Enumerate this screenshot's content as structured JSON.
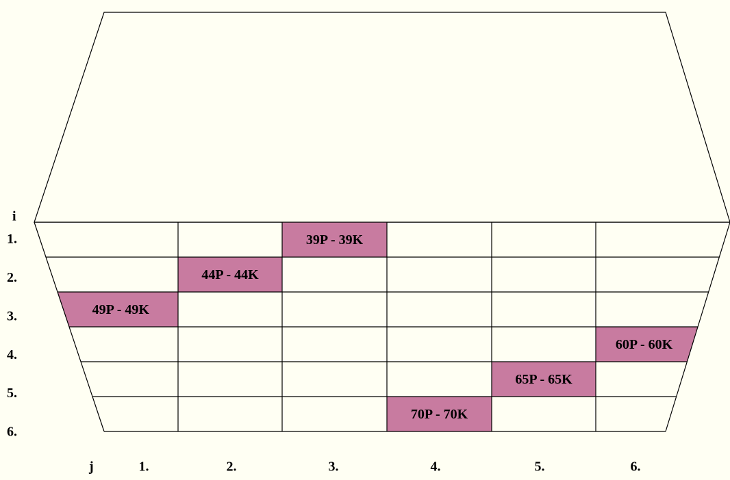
{
  "row_axis_label": "i",
  "col_axis_label": "j",
  "rows": [
    "1.",
    "2.",
    "3.",
    "4.",
    "5.",
    "6."
  ],
  "cols": [
    "1.",
    "2.",
    "3.",
    "4.",
    "5.",
    "6."
  ],
  "cells": [
    [
      null,
      null,
      "39P - 39K",
      null,
      null,
      null
    ],
    [
      null,
      "44P - 44K",
      null,
      null,
      null,
      null
    ],
    [
      "49P - 49K",
      null,
      null,
      null,
      null,
      null
    ],
    [
      null,
      null,
      null,
      null,
      null,
      "60P - 60K"
    ],
    [
      null,
      null,
      null,
      null,
      "65P - 65K",
      null
    ],
    [
      null,
      null,
      null,
      "70P - 70K",
      null,
      null
    ]
  ]
}
